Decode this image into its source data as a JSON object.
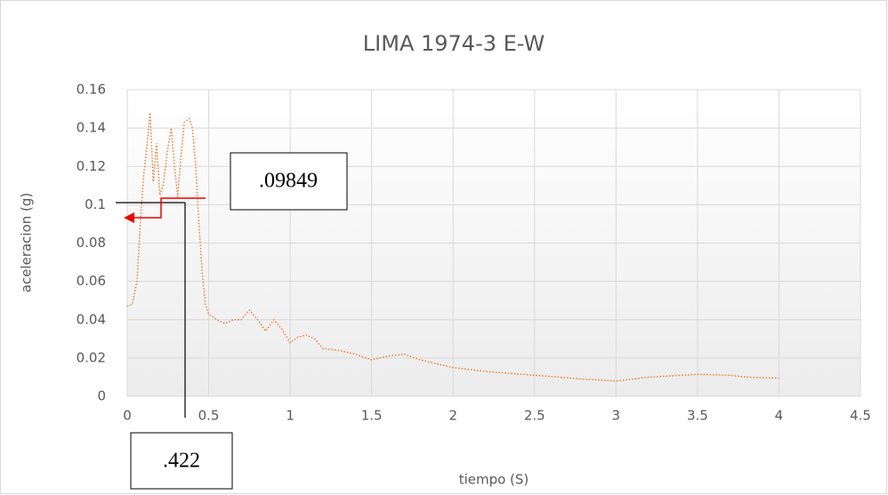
{
  "chart_data": {
    "type": "line",
    "title": "LIMA 1974-3 E-W",
    "x_label": "tiempo (S)",
    "y_label": "aceleracion (g)",
    "annotations": [
      ".09849",
      ".422"
    ],
    "x": [
      0,
      0.03,
      0.06,
      0.08,
      0.1,
      0.12,
      0.14,
      0.16,
      0.18,
      0.2,
      0.22,
      0.25,
      0.27,
      0.29,
      0.31,
      0.33,
      0.35,
      0.38,
      0.4,
      0.42,
      0.44,
      0.46,
      0.48,
      0.5,
      0.55,
      0.6,
      0.65,
      0.7,
      0.75,
      0.8,
      0.85,
      0.9,
      0.95,
      1.0,
      1.05,
      1.1,
      1.15,
      1.2,
      1.3,
      1.4,
      1.5,
      1.6,
      1.7,
      1.8,
      2.0,
      2.2,
      2.5,
      2.8,
      3.0,
      3.2,
      3.5,
      3.7,
      3.8,
      4.0
    ],
    "series": [
      {
        "name": "LIMA 1974-3 E-W",
        "color": "#ed7d31",
        "values": [
          0.047,
          0.048,
          0.06,
          0.09,
          0.115,
          0.13,
          0.148,
          0.112,
          0.132,
          0.105,
          0.11,
          0.13,
          0.14,
          0.12,
          0.104,
          0.125,
          0.143,
          0.145,
          0.14,
          0.12,
          0.09,
          0.065,
          0.048,
          0.043,
          0.04,
          0.038,
          0.04,
          0.04,
          0.045,
          0.04,
          0.034,
          0.04,
          0.035,
          0.028,
          0.031,
          0.032,
          0.03,
          0.025,
          0.024,
          0.022,
          0.019,
          0.021,
          0.022,
          0.019,
          0.015,
          0.013,
          0.011,
          0.009,
          0.008,
          0.01,
          0.0115,
          0.011,
          0.01,
          0.0095
        ]
      }
    ],
    "xlim": [
      0,
      4.5
    ],
    "xticks": [
      0,
      0.5,
      1,
      1.5,
      2,
      2.5,
      3,
      3.5,
      4,
      4.5
    ],
    "ylim": [
      0,
      0.16
    ],
    "yticks": [
      0,
      0.02,
      0.04,
      0.06,
      0.08,
      0.1,
      0.12,
      0.14,
      0.16
    ],
    "grid": true
  }
}
